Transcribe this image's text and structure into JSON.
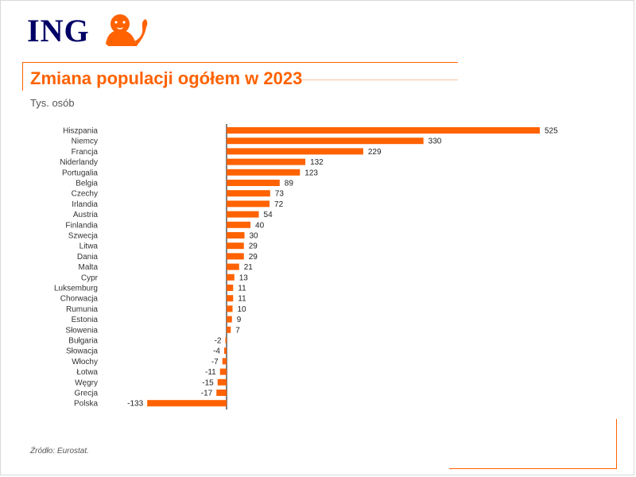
{
  "brand": {
    "name": "ING",
    "accent": "#ff6200",
    "navy": "#000066"
  },
  "header": {
    "title": "Zmiana populacji ogółem w 2023",
    "subtitle": "Tys. osób"
  },
  "footer": {
    "source": "Źródło: Eurostat."
  },
  "chart_data": {
    "type": "bar",
    "orientation": "horizontal",
    "title": "Zmiana populacji ogółem w 2023",
    "unit": "Tys. osób",
    "bar_color": "#ff6200",
    "categories": [
      "Hiszpania",
      "Niemcy",
      "Francja",
      "Niderlandy",
      "Portugalia",
      "Belgia",
      "Czechy",
      "Irlandia",
      "Austria",
      "Finlandia",
      "Szwecja",
      "Litwa",
      "Dania",
      "Malta",
      "Cypr",
      "Luksemburg",
      "Chorwacja",
      "Rumunia",
      "Estonia",
      "Słowenia",
      "Bułgaria",
      "Słowacja",
      "Włochy",
      "Łotwa",
      "Węgry",
      "Grecja",
      "Polska"
    ],
    "values": [
      525,
      330,
      229,
      132,
      123,
      89,
      73,
      72,
      54,
      40,
      30,
      29,
      29,
      21,
      13,
      11,
      11,
      10,
      9,
      7,
      -2,
      -4,
      -7,
      -11,
      -15,
      -17,
      -133
    ],
    "xlim": [
      -133,
      525
    ],
    "grid": false
  }
}
